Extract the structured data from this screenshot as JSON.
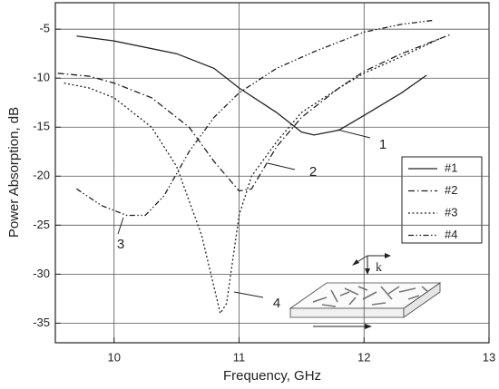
{
  "chart_data": {
    "type": "line",
    "xlabel": "Frequency, GHz",
    "ylabel": "Power Absorption, dB",
    "xlim": [
      9.53,
      13
    ],
    "xticks": [
      10,
      11,
      12,
      13
    ],
    "ylim": [
      -37,
      -2.3
    ],
    "yticks": [
      -5,
      -10,
      -15,
      -20,
      -25,
      -30,
      -35
    ],
    "grid": true,
    "legend": "right",
    "annotations": [
      "1",
      "2",
      "3",
      "4"
    ],
    "inset_label": "k",
    "series": [
      {
        "name": "#1",
        "color": "#222222",
        "dash": "solid",
        "x": [
          9.7,
          10,
          10.5,
          10.8,
          11,
          11.3,
          11.5,
          11.6,
          11.8,
          12,
          12.3,
          12.5
        ],
        "values": [
          -5.7,
          -6.2,
          -7.5,
          -9,
          -11,
          -13.5,
          -15.5,
          -15.8,
          -15.3,
          -13.8,
          -11.5,
          -9.7
        ]
      },
      {
        "name": "#2",
        "color": "#222222",
        "dash": "dashdot",
        "x": [
          9.55,
          9.8,
          10,
          10.3,
          10.6,
          10.8,
          11,
          11.1,
          11.3,
          11.5,
          11.8,
          12,
          12.3,
          12.7
        ],
        "values": [
          -9.5,
          -9.8,
          -10.5,
          -12,
          -15,
          -18.5,
          -21.5,
          -21.3,
          -17,
          -14,
          -11,
          -9.3,
          -7.5,
          -5.5
        ]
      },
      {
        "name": "#3",
        "color": "#222222",
        "dash": "dotted",
        "x": [
          9.6,
          9.8,
          10,
          10.3,
          10.5,
          10.7,
          10.85,
          10.9,
          11,
          11.1,
          11.3,
          11.5,
          11.8,
          12,
          12.3,
          12.6
        ],
        "values": [
          -10.5,
          -11,
          -12,
          -15,
          -19,
          -26,
          -34,
          -33,
          -24,
          -20,
          -16.5,
          -13.5,
          -11,
          -9.5,
          -7.8,
          -6
        ]
      },
      {
        "name": "#4",
        "color": "#222222",
        "dash": "dashdotdot",
        "x": [
          9.7,
          9.9,
          10.1,
          10.25,
          10.4,
          10.6,
          10.8,
          11,
          11.3,
          11.6,
          12,
          12.3,
          12.55
        ],
        "values": [
          -21.3,
          -23,
          -24,
          -24,
          -22,
          -17.5,
          -14,
          -11.5,
          -9,
          -7.3,
          -5.3,
          -4.5,
          -4.1
        ]
      }
    ]
  }
}
